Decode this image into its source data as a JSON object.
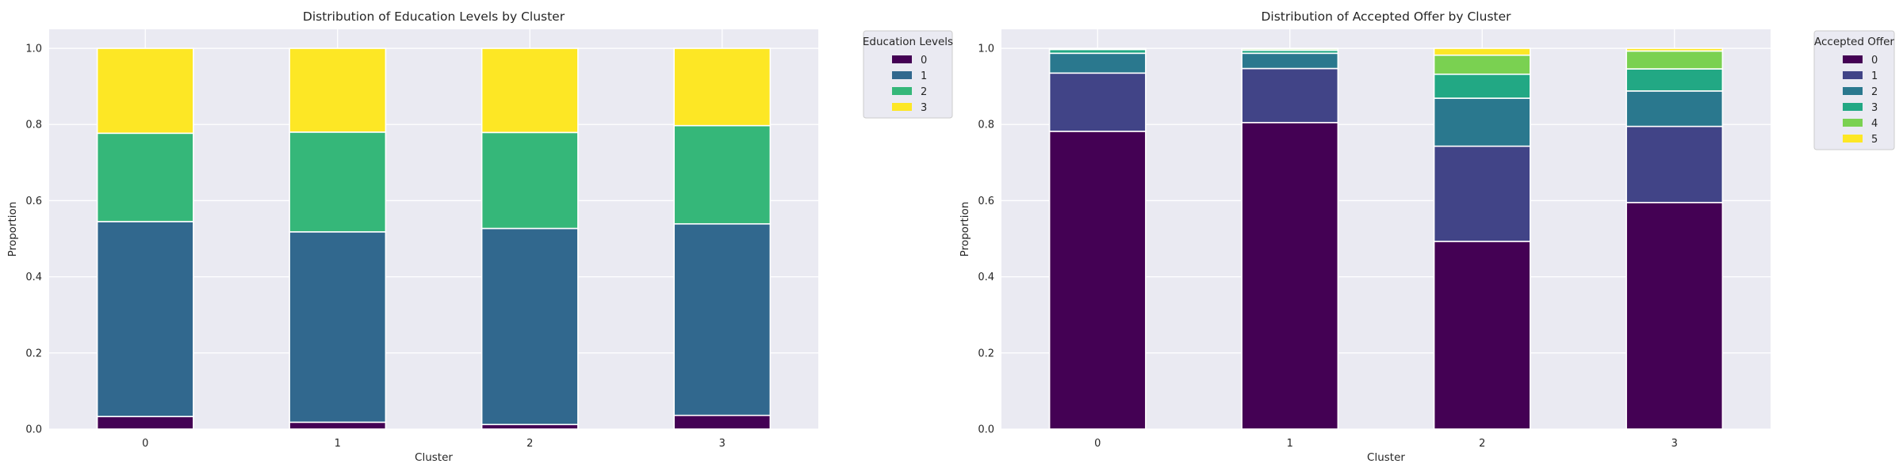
{
  "chart_data": [
    {
      "type": "bar",
      "stacked": true,
      "title": "Distribution of Education Levels by Cluster",
      "xlabel": "Cluster",
      "ylabel": "Proportion",
      "categories": [
        "0",
        "1",
        "2",
        "3"
      ],
      "ylim": [
        0,
        1.05
      ],
      "yticks": [
        "0.0",
        "0.2",
        "0.4",
        "0.6",
        "0.8",
        "1.0"
      ],
      "grid": true,
      "legend": {
        "title": "Education Levels",
        "placement": "outside-top-right"
      },
      "series": [
        {
          "name": "0",
          "color": "#440154",
          "values": [
            0.033,
            0.018,
            0.012,
            0.036
          ]
        },
        {
          "name": "1",
          "color": "#31688e",
          "values": [
            0.512,
            0.5,
            0.515,
            0.503
          ]
        },
        {
          "name": "2",
          "color": "#35b779",
          "values": [
            0.232,
            0.262,
            0.252,
            0.258
          ]
        },
        {
          "name": "3",
          "color": "#fde725",
          "values": [
            0.223,
            0.22,
            0.221,
            0.203
          ]
        }
      ]
    },
    {
      "type": "bar",
      "stacked": true,
      "title": "Distribution of Accepted Offer by Cluster",
      "xlabel": "Cluster",
      "ylabel": "Proportion",
      "categories": [
        "0",
        "1",
        "2",
        "3"
      ],
      "ylim": [
        0,
        1.05
      ],
      "yticks": [
        "0.0",
        "0.2",
        "0.4",
        "0.6",
        "0.8",
        "1.0"
      ],
      "grid": true,
      "legend": {
        "title": "Accepted Offer",
        "placement": "outside-top-right"
      },
      "series": [
        {
          "name": "0",
          "color": "#440154",
          "values": [
            0.782,
            0.805,
            0.493,
            0.595
          ]
        },
        {
          "name": "1",
          "color": "#414487",
          "values": [
            0.153,
            0.142,
            0.25,
            0.2
          ]
        },
        {
          "name": "2",
          "color": "#2a788e",
          "values": [
            0.052,
            0.04,
            0.126,
            0.093
          ]
        },
        {
          "name": "3",
          "color": "#22a884",
          "values": [
            0.01,
            0.008,
            0.063,
            0.058
          ]
        },
        {
          "name": "4",
          "color": "#7ad151",
          "values": [
            0.003,
            0.004,
            0.05,
            0.047
          ]
        },
        {
          "name": "5",
          "color": "#fde725",
          "values": [
            0.0,
            0.001,
            0.018,
            0.007
          ]
        }
      ]
    }
  ]
}
